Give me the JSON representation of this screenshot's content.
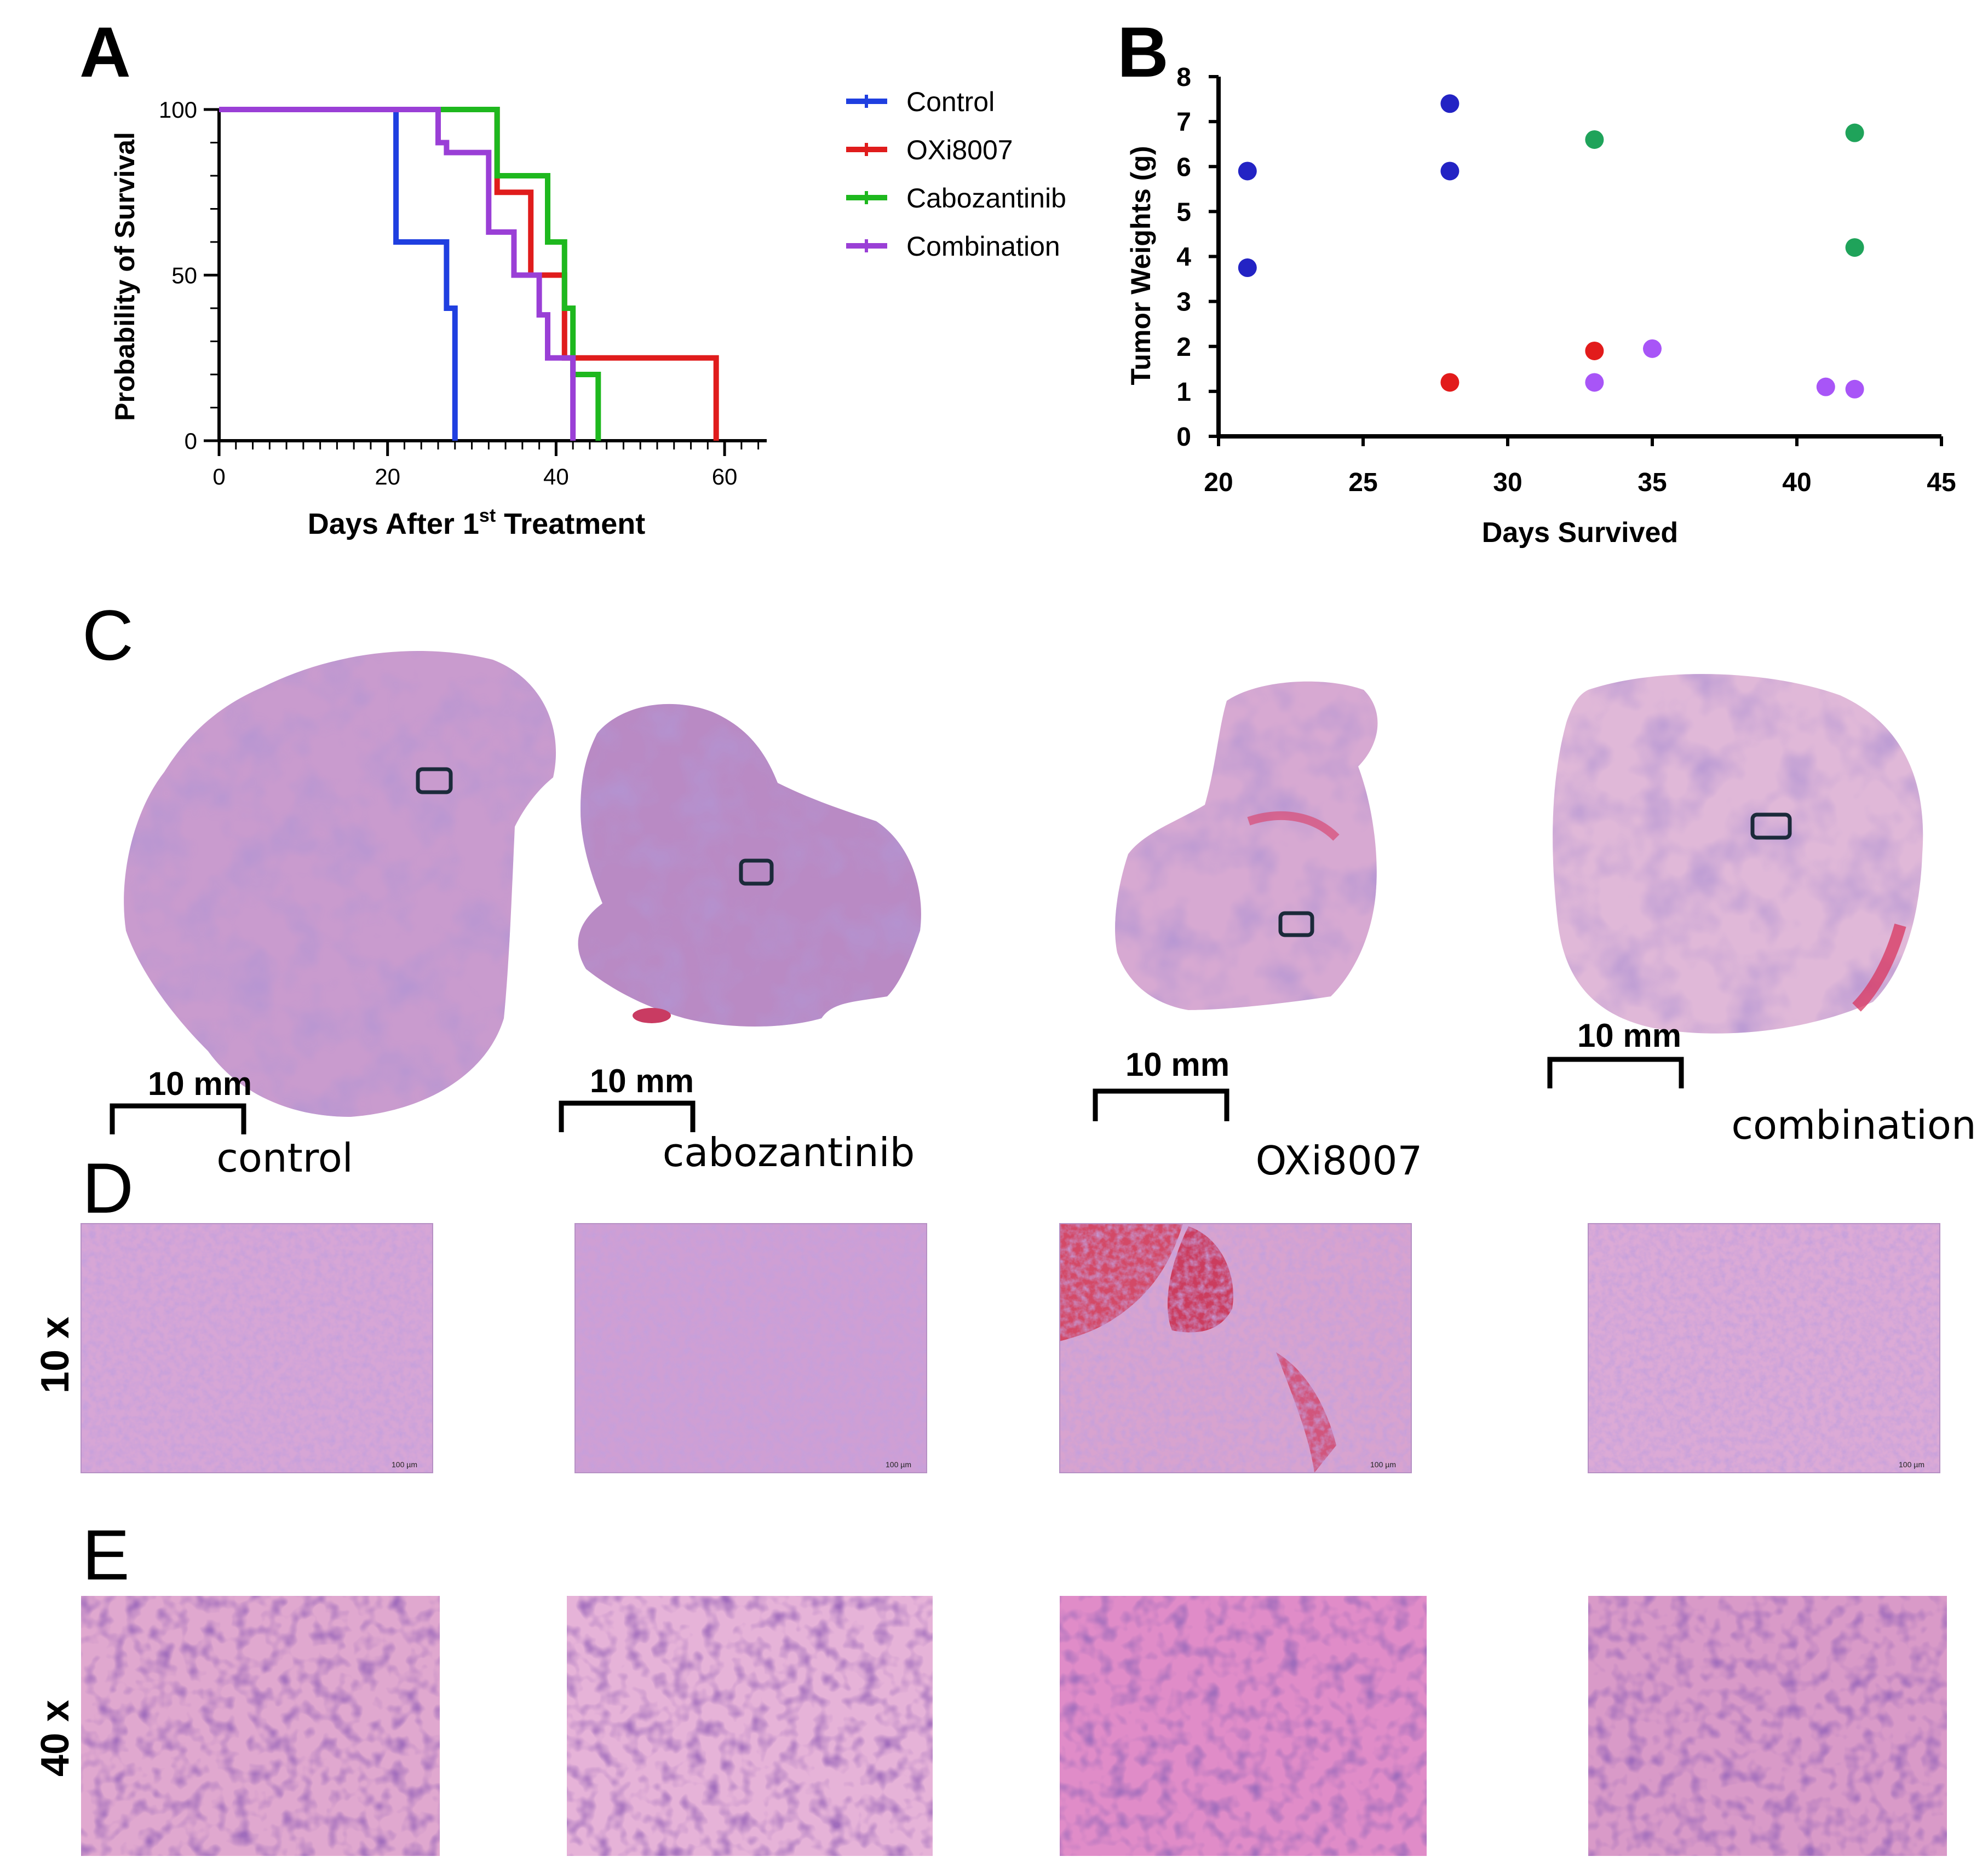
{
  "panels": {
    "a": "A",
    "b": "B",
    "c": "C",
    "d": "D",
    "e": "E"
  },
  "chart_data": [
    {
      "type": "line",
      "subtype": "kaplan-meier-step",
      "xlabel_main": "Days After 1",
      "xlabel_sup": "st",
      "xlabel_tail": " Treatment",
      "ylabel": "Probability of Survival",
      "xlim": [
        0,
        65
      ],
      "ylim": [
        0,
        100
      ],
      "x_ticks": [
        0,
        20,
        40,
        60
      ],
      "y_ticks": [
        0,
        50,
        100
      ],
      "legend_placement": "right",
      "series": [
        {
          "name": "Control",
          "color": "#1f3fe0",
          "points": [
            [
              0,
              100
            ],
            [
              21,
              100
            ],
            [
              21,
              60
            ],
            [
              27,
              60
            ],
            [
              27,
              40
            ],
            [
              28,
              40
            ],
            [
              28,
              0
            ]
          ]
        },
        {
          "name": "OXi8007",
          "color": "#e01c1c",
          "points": [
            [
              0,
              100
            ],
            [
              28,
              100
            ],
            [
              28,
              100
            ],
            [
              30,
              100
            ],
            [
              30,
              100
            ],
            [
              33,
              100
            ],
            [
              33,
              75
            ],
            [
              33,
              75
            ],
            [
              35,
              75
            ],
            [
              35,
              75
            ],
            [
              37,
              75
            ],
            [
              37,
              50
            ],
            [
              41,
              50
            ],
            [
              41,
              25
            ],
            [
              59,
              25
            ],
            [
              59,
              0
            ]
          ]
        },
        {
          "name": "Cabozantinib",
          "color": "#1eb81e",
          "points": [
            [
              0,
              100
            ],
            [
              33,
              100
            ],
            [
              33,
              80
            ],
            [
              39,
              80
            ],
            [
              39,
              60
            ],
            [
              41,
              60
            ],
            [
              41,
              40
            ],
            [
              42,
              40
            ],
            [
              42,
              20
            ],
            [
              45,
              20
            ],
            [
              45,
              0
            ]
          ]
        },
        {
          "name": "Combination",
          "color": "#9a3fd6",
          "points": [
            [
              0,
              100
            ],
            [
              26,
              100
            ],
            [
              26,
              90
            ],
            [
              27,
              90
            ],
            [
              27,
              87
            ],
            [
              32,
              87
            ],
            [
              32,
              63
            ],
            [
              35,
              63
            ],
            [
              35,
              50
            ],
            [
              38,
              50
            ],
            [
              38,
              38
            ],
            [
              39,
              38
            ],
            [
              39,
              25
            ],
            [
              42,
              25
            ],
            [
              42,
              0
            ]
          ]
        }
      ]
    },
    {
      "type": "scatter",
      "xlabel": "Days Survived",
      "ylabel": "Tumor Weights (g)",
      "xlim": [
        20,
        45
      ],
      "ylim": [
        0,
        8
      ],
      "x_ticks": [
        20,
        25,
        30,
        35,
        40,
        45
      ],
      "y_ticks": [
        0,
        1,
        2,
        3,
        4,
        5,
        6,
        7,
        8
      ],
      "series": [
        {
          "color": "#2323c4",
          "points": [
            [
              21,
              5.9
            ],
            [
              21,
              3.75
            ],
            [
              28,
              7.4
            ],
            [
              28,
              5.9
            ]
          ]
        },
        {
          "color": "#e21b1b",
          "points": [
            [
              28,
              1.2
            ],
            [
              33,
              1.9
            ]
          ]
        },
        {
          "color": "#1fa35a",
          "points": [
            [
              33,
              6.6
            ],
            [
              42,
              6.75
            ],
            [
              42,
              4.2
            ]
          ]
        },
        {
          "color": "#a855f7",
          "points": [
            [
              33,
              1.2
            ],
            [
              35,
              1.95
            ],
            [
              41,
              1.1
            ],
            [
              42,
              1.05
            ]
          ]
        }
      ]
    }
  ],
  "panel_c": {
    "sections": [
      {
        "label": "control",
        "scale": "10 mm"
      },
      {
        "label": "cabozantinib",
        "scale": "10 mm"
      },
      {
        "label": "OXi8007",
        "scale": "10 mm"
      },
      {
        "label": "combination",
        "scale": "10 mm"
      }
    ]
  },
  "panel_d": {
    "magnification": "10 x",
    "scalebar": "100 µm"
  },
  "panel_e": {
    "magnification": "40 x"
  },
  "colors": {
    "tissue_light": "#d9aed8",
    "tissue_dark": "#9d6fb7",
    "stain_red": "#c93b62"
  }
}
